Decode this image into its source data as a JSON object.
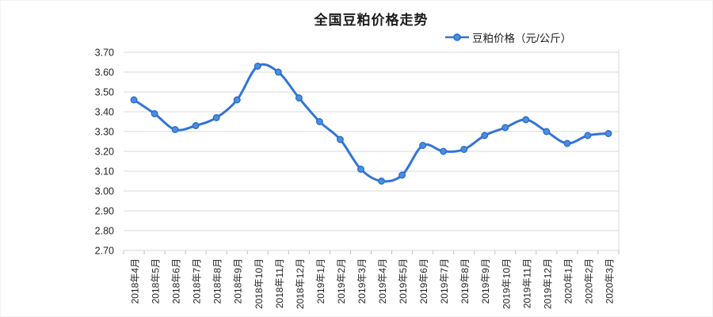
{
  "title": "全国豆粕价格走势",
  "legend": {
    "label": "豆粕价格（元/公斤）"
  },
  "colors": {
    "line": "#3274d9",
    "marker_fill": "#4a8fe0",
    "marker_stroke": "#2a6ac8",
    "grid": "#d9d9d9",
    "axis_tick": "#c0c0c0",
    "text": "#222222",
    "title_text": "#1c1c1c"
  },
  "chart_data": {
    "type": "line",
    "title": "全国豆粕价格走势",
    "categories": [
      "2018年4月",
      "2018年5月",
      "2018年6月",
      "2018年7月",
      "2018年8月",
      "2018年9月",
      "2018年10月",
      "2018年11月",
      "2018年12月",
      "2019年1月",
      "2019年2月",
      "2019年3月",
      "2019年4月",
      "2019年5月",
      "2019年6月",
      "2019年7月",
      "2019年8月",
      "2019年9月",
      "2019年10月",
      "2019年11月",
      "2019年12月",
      "2020年1月",
      "2020年2月",
      "2020年3月"
    ],
    "series": [
      {
        "name": "豆粕价格（元/公斤）",
        "values": [
          3.46,
          3.39,
          3.31,
          3.33,
          3.37,
          3.46,
          3.63,
          3.6,
          3.47,
          3.35,
          3.26,
          3.11,
          3.05,
          3.08,
          3.23,
          3.2,
          3.21,
          3.28,
          3.32,
          3.36,
          3.3,
          3.24,
          3.28,
          3.29
        ]
      }
    ],
    "xlabel": "",
    "ylabel": "",
    "ylim": [
      2.7,
      3.7
    ],
    "yticks": [
      "3.70",
      "3.60",
      "3.50",
      "3.40",
      "3.30",
      "3.20",
      "3.10",
      "3.00",
      "2.90",
      "2.80",
      "2.70"
    ],
    "grid": true,
    "smooth_line": true,
    "legend_position": "top-right",
    "x_tick_label_rotation": 90
  }
}
